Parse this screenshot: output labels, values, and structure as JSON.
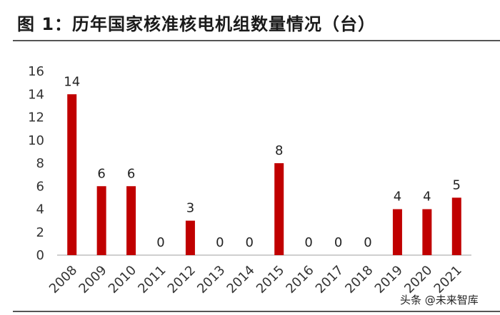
{
  "title": "图 1：历年国家核准核电机组数量情况（台）",
  "watermark": "头条 @未来智库",
  "colors": {
    "bar": "#c00000",
    "axis": "#bfbfbf",
    "rule": "#555555"
  },
  "chart_data": {
    "type": "bar",
    "title": "图 1：历年国家核准核电机组数量情况（台）",
    "categories": [
      "2008",
      "2009",
      "2010",
      "2011",
      "2012",
      "2013",
      "2014",
      "2015",
      "2016",
      "2017",
      "2018",
      "2019",
      "2020",
      "2021"
    ],
    "values": [
      14,
      6,
      6,
      0,
      3,
      0,
      0,
      8,
      0,
      0,
      0,
      4,
      4,
      5
    ],
    "yticks": [
      0,
      2,
      4,
      6,
      8,
      10,
      12,
      14,
      16
    ],
    "ylim": [
      0,
      16
    ],
    "xlabel": "",
    "ylabel": "",
    "grid": false,
    "legend": "none",
    "data_labels": true,
    "x_tick_rotation": "rotated ~45 degrees"
  }
}
